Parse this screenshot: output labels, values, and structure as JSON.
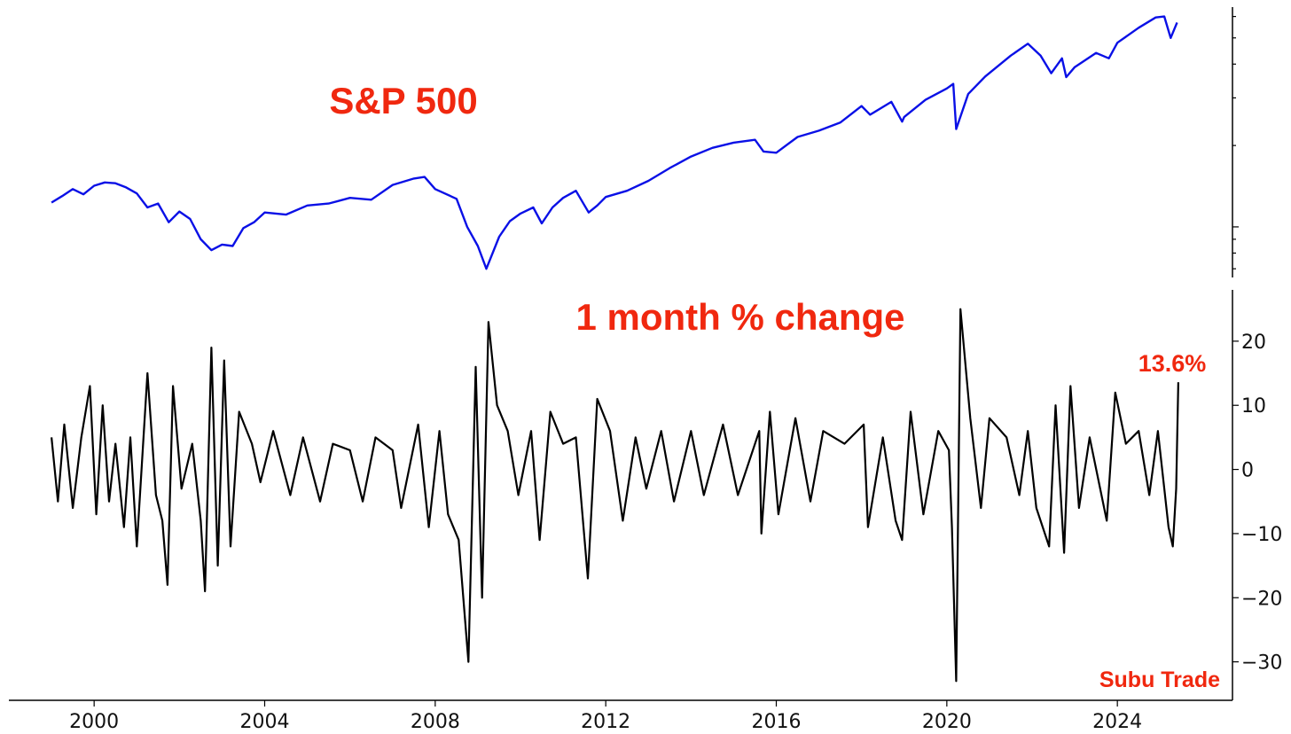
{
  "chart_data": [
    {
      "type": "line",
      "title": "S&P 500",
      "yscale": "log",
      "ylim": [
        650,
        6500
      ],
      "y_ticks_labelled": false,
      "grid": false,
      "series": [
        {
          "color": "#0a10e6",
          "points": [
            [
              1999.0,
              1230
            ],
            [
              1999.25,
              1300
            ],
            [
              1999.5,
              1380
            ],
            [
              1999.75,
              1320
            ],
            [
              2000.0,
              1420
            ],
            [
              2000.25,
              1460
            ],
            [
              2000.5,
              1450
            ],
            [
              2000.75,
              1400
            ],
            [
              2001.0,
              1330
            ],
            [
              2001.25,
              1180
            ],
            [
              2001.5,
              1220
            ],
            [
              2001.75,
              1040
            ],
            [
              2002.0,
              1140
            ],
            [
              2002.25,
              1070
            ],
            [
              2002.5,
              900
            ],
            [
              2002.75,
              820
            ],
            [
              2003.0,
              860
            ],
            [
              2003.25,
              850
            ],
            [
              2003.5,
              990
            ],
            [
              2003.75,
              1040
            ],
            [
              2004.0,
              1130
            ],
            [
              2004.5,
              1110
            ],
            [
              2005.0,
              1200
            ],
            [
              2005.5,
              1220
            ],
            [
              2006.0,
              1280
            ],
            [
              2006.5,
              1260
            ],
            [
              2007.0,
              1430
            ],
            [
              2007.5,
              1510
            ],
            [
              2007.75,
              1530
            ],
            [
              2008.0,
              1380
            ],
            [
              2008.5,
              1270
            ],
            [
              2008.75,
              1000
            ],
            [
              2009.0,
              850
            ],
            [
              2009.2,
              700
            ],
            [
              2009.5,
              920
            ],
            [
              2009.75,
              1050
            ],
            [
              2010.0,
              1120
            ],
            [
              2010.3,
              1180
            ],
            [
              2010.5,
              1030
            ],
            [
              2010.75,
              1180
            ],
            [
              2011.0,
              1280
            ],
            [
              2011.3,
              1360
            ],
            [
              2011.6,
              1130
            ],
            [
              2011.8,
              1200
            ],
            [
              2012.0,
              1290
            ],
            [
              2012.5,
              1360
            ],
            [
              2013.0,
              1480
            ],
            [
              2013.5,
              1650
            ],
            [
              2014.0,
              1820
            ],
            [
              2014.5,
              1960
            ],
            [
              2015.0,
              2050
            ],
            [
              2015.5,
              2100
            ],
            [
              2015.7,
              1900
            ],
            [
              2016.0,
              1880
            ],
            [
              2016.5,
              2150
            ],
            [
              2017.0,
              2270
            ],
            [
              2017.5,
              2430
            ],
            [
              2018.0,
              2800
            ],
            [
              2018.2,
              2600
            ],
            [
              2018.7,
              2900
            ],
            [
              2018.95,
              2450
            ],
            [
              2019.0,
              2550
            ],
            [
              2019.5,
              2950
            ],
            [
              2020.0,
              3250
            ],
            [
              2020.15,
              3380
            ],
            [
              2020.22,
              2300
            ],
            [
              2020.5,
              3100
            ],
            [
              2020.9,
              3600
            ],
            [
              2021.5,
              4300
            ],
            [
              2021.9,
              4760
            ],
            [
              2022.2,
              4300
            ],
            [
              2022.45,
              3700
            ],
            [
              2022.7,
              4200
            ],
            [
              2022.8,
              3580
            ],
            [
              2023.0,
              3900
            ],
            [
              2023.5,
              4400
            ],
            [
              2023.8,
              4200
            ],
            [
              2024.0,
              4800
            ],
            [
              2024.5,
              5450
            ],
            [
              2024.9,
              5950
            ],
            [
              2025.1,
              6000
            ],
            [
              2025.25,
              5000
            ],
            [
              2025.4,
              5700
            ]
          ]
        }
      ]
    },
    {
      "type": "line",
      "title": "1 month % change",
      "xlim": [
        1998.0,
        2026.7
      ],
      "ylim": [
        -36,
        28
      ],
      "xticks": [
        "2000",
        "2004",
        "2008",
        "2012",
        "2016",
        "2020",
        "2024"
      ],
      "yticks": [
        "20",
        "10",
        "0",
        "−10",
        "−20",
        "−30"
      ],
      "grid": false,
      "annotation": "13.6%",
      "series": [
        {
          "color": "#000000",
          "points": [
            [
              1999.0,
              5
            ],
            [
              1999.15,
              -5
            ],
            [
              1999.3,
              7
            ],
            [
              1999.5,
              -6
            ],
            [
              1999.7,
              5
            ],
            [
              1999.9,
              13
            ],
            [
              2000.05,
              -7
            ],
            [
              2000.2,
              10
            ],
            [
              2000.35,
              -5
            ],
            [
              2000.5,
              4
            ],
            [
              2000.7,
              -9
            ],
            [
              2000.85,
              5
            ],
            [
              2001.0,
              -12
            ],
            [
              2001.25,
              15
            ],
            [
              2001.45,
              -4
            ],
            [
              2001.6,
              -8
            ],
            [
              2001.72,
              -18
            ],
            [
              2001.85,
              13
            ],
            [
              2002.05,
              -3
            ],
            [
              2002.3,
              4
            ],
            [
              2002.5,
              -8
            ],
            [
              2002.6,
              -19
            ],
            [
              2002.75,
              19
            ],
            [
              2002.9,
              -15
            ],
            [
              2003.05,
              17
            ],
            [
              2003.2,
              -12
            ],
            [
              2003.4,
              9
            ],
            [
              2003.7,
              4
            ],
            [
              2003.9,
              -2
            ],
            [
              2004.2,
              6
            ],
            [
              2004.6,
              -4
            ],
            [
              2004.9,
              5
            ],
            [
              2005.3,
              -5
            ],
            [
              2005.6,
              4
            ],
            [
              2006.0,
              3
            ],
            [
              2006.3,
              -5
            ],
            [
              2006.6,
              5
            ],
            [
              2007.0,
              3
            ],
            [
              2007.2,
              -6
            ],
            [
              2007.6,
              7
            ],
            [
              2007.85,
              -9
            ],
            [
              2008.1,
              6
            ],
            [
              2008.3,
              -7
            ],
            [
              2008.55,
              -11
            ],
            [
              2008.78,
              -30
            ],
            [
              2008.95,
              16
            ],
            [
              2009.1,
              -20
            ],
            [
              2009.25,
              23
            ],
            [
              2009.45,
              10
            ],
            [
              2009.7,
              6
            ],
            [
              2009.95,
              -4
            ],
            [
              2010.25,
              6
            ],
            [
              2010.45,
              -11
            ],
            [
              2010.7,
              9
            ],
            [
              2011.0,
              4
            ],
            [
              2011.3,
              5
            ],
            [
              2011.58,
              -17
            ],
            [
              2011.8,
              11
            ],
            [
              2012.1,
              6
            ],
            [
              2012.4,
              -8
            ],
            [
              2012.7,
              5
            ],
            [
              2012.95,
              -3
            ],
            [
              2013.3,
              6
            ],
            [
              2013.6,
              -5
            ],
            [
              2014.0,
              6
            ],
            [
              2014.3,
              -4
            ],
            [
              2014.75,
              7
            ],
            [
              2015.1,
              -4
            ],
            [
              2015.6,
              6
            ],
            [
              2015.65,
              -10
            ],
            [
              2015.85,
              9
            ],
            [
              2016.05,
              -7
            ],
            [
              2016.45,
              8
            ],
            [
              2016.8,
              -5
            ],
            [
              2017.1,
              6
            ],
            [
              2017.6,
              4
            ],
            [
              2018.05,
              7
            ],
            [
              2018.15,
              -9
            ],
            [
              2018.5,
              5
            ],
            [
              2018.8,
              -8
            ],
            [
              2018.95,
              -11
            ],
            [
              2019.15,
              9
            ],
            [
              2019.45,
              -7
            ],
            [
              2019.8,
              6
            ],
            [
              2020.05,
              3
            ],
            [
              2020.12,
              -9
            ],
            [
              2020.22,
              -33
            ],
            [
              2020.32,
              25
            ],
            [
              2020.55,
              8
            ],
            [
              2020.8,
              -6
            ],
            [
              2021.0,
              8
            ],
            [
              2021.4,
              5
            ],
            [
              2021.7,
              -4
            ],
            [
              2021.9,
              6
            ],
            [
              2022.1,
              -6
            ],
            [
              2022.4,
              -12
            ],
            [
              2022.55,
              10
            ],
            [
              2022.75,
              -13
            ],
            [
              2022.9,
              13
            ],
            [
              2023.1,
              -6
            ],
            [
              2023.35,
              5
            ],
            [
              2023.75,
              -8
            ],
            [
              2023.95,
              12
            ],
            [
              2024.2,
              4
            ],
            [
              2024.5,
              6
            ],
            [
              2024.75,
              -4
            ],
            [
              2024.95,
              6
            ],
            [
              2025.1,
              -3
            ],
            [
              2025.2,
              -9
            ],
            [
              2025.3,
              -12
            ],
            [
              2025.38,
              -3
            ],
            [
              2025.43,
              13.6
            ]
          ]
        }
      ]
    }
  ],
  "labels": {
    "top_title": "S&P 500",
    "bottom_title": "1 month % change",
    "annotation": "13.6%",
    "credit": "Subu Trade"
  },
  "colors": {
    "accent": "#f0280f",
    "price_line": "#0a10e6",
    "change_line": "#000000"
  }
}
